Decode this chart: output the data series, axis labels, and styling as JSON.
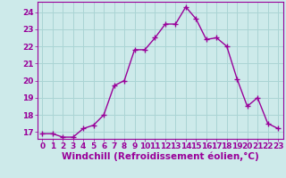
{
  "x": [
    0,
    1,
    2,
    3,
    4,
    5,
    6,
    7,
    8,
    9,
    10,
    11,
    12,
    13,
    14,
    15,
    16,
    17,
    18,
    19,
    20,
    21,
    22,
    23
  ],
  "y": [
    16.9,
    16.9,
    16.7,
    16.7,
    17.2,
    17.4,
    18.0,
    19.7,
    20.0,
    21.8,
    21.8,
    22.5,
    23.3,
    23.3,
    24.3,
    23.6,
    22.4,
    22.5,
    22.0,
    20.1,
    18.5,
    19.0,
    17.5,
    17.2
  ],
  "line_color": "#990099",
  "marker": "+",
  "marker_size": 4,
  "marker_lw": 1.0,
  "bg_color": "#cdeaea",
  "grid_color": "#aad4d4",
  "xlabel": "Windchill (Refroidissement éolien,°C)",
  "xlabel_fontsize": 7.5,
  "tick_fontsize": 6.5,
  "ylim": [
    16.6,
    24.6
  ],
  "yticks": [
    17,
    18,
    19,
    20,
    21,
    22,
    23,
    24
  ],
  "xlim": [
    -0.5,
    23.5
  ],
  "xticks": [
    0,
    1,
    2,
    3,
    4,
    5,
    6,
    7,
    8,
    9,
    10,
    11,
    12,
    13,
    14,
    15,
    16,
    17,
    18,
    19,
    20,
    21,
    22,
    23
  ]
}
